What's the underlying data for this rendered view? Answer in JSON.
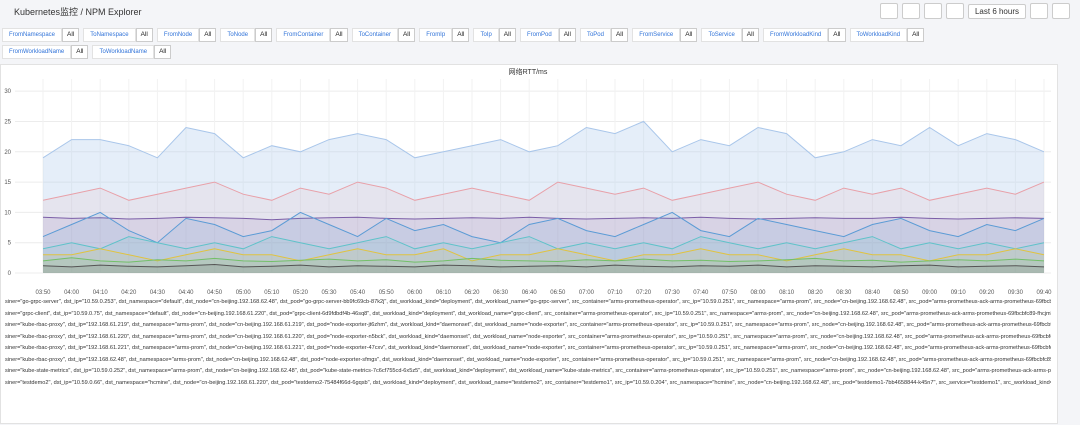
{
  "header": {
    "title": "Kubernetes监控 / NPM Explorer",
    "time_range": "Last 6 hours"
  },
  "filters": [
    {
      "label": "FromNamespace",
      "value": "All"
    },
    {
      "label": "ToNamespace",
      "value": "All"
    },
    {
      "label": "FromNode",
      "value": "All"
    },
    {
      "label": "ToNode",
      "value": "All"
    },
    {
      "label": "FromContainer",
      "value": "All"
    },
    {
      "label": "ToContainer",
      "value": "All"
    },
    {
      "label": "FromIp",
      "value": "All"
    },
    {
      "label": "ToIp",
      "value": "All"
    },
    {
      "label": "FromPod",
      "value": "All"
    },
    {
      "label": "ToPod",
      "value": "All"
    },
    {
      "label": "FromService",
      "value": "All"
    },
    {
      "label": "ToService",
      "value": "All"
    },
    {
      "label": "FromWorkloadKind",
      "value": "All"
    },
    {
      "label": "ToWorkloadKind",
      "value": "All"
    },
    {
      "label": "FromWorkloadName",
      "value": "All"
    },
    {
      "label": "ToWorkloadName",
      "value": "All"
    }
  ],
  "chart_data": {
    "type": "line",
    "title": "网络RTT/ms",
    "grid": true,
    "ylim": [
      0,
      32
    ],
    "yticks": [
      0,
      5,
      10,
      15,
      20,
      25,
      30
    ],
    "x": [
      "03:50",
      "04:00",
      "04:10",
      "04:20",
      "04:30",
      "04:40",
      "04:50",
      "05:00",
      "05:10",
      "05:20",
      "05:30",
      "05:40",
      "05:50",
      "06:00",
      "06:10",
      "06:20",
      "06:30",
      "06:40",
      "06:50",
      "07:00",
      "07:10",
      "07:20",
      "07:30",
      "07:40",
      "07:50",
      "08:00",
      "08:10",
      "08:20",
      "08:30",
      "08:40",
      "08:50",
      "09:00",
      "09:10",
      "09:20",
      "09:30",
      "09:40"
    ],
    "series": [
      {
        "name": "siner=\"go-grpc-server\", dst_ip=\"10.59.0.253\", dst_namespace=\"default\", dst_node=\"cn-beijing.192.168.62.48\", dst_pod=\"go-grpc-server-bb9fc69cb-87k2j\", dst_workload_kind=\"deployment\", dst_workload_name=\"go-grpc-server\", src_container=\"arms-prometheus-operator\", src_ip=\"10.59.0.251\", src_namespace=\"arms-prom\", src_node=\"cn-beijing.192.168.62.48\", src_pod=\"arms-prometheus-ack-arms-prometheus-69fbcbfc89",
        "color": "#a9c6ea",
        "values": [
          19,
          22,
          22,
          21,
          19,
          24,
          23,
          19,
          21,
          20,
          22,
          23,
          22,
          19,
          20,
          21,
          22,
          20,
          21,
          24,
          23,
          25,
          20,
          22,
          21,
          24,
          23,
          19,
          20,
          22,
          21,
          24,
          21,
          23,
          22,
          20
        ]
      },
      {
        "name": "siner=\"grpc-client\", dst_ip=\"10.59.0.75\", dst_namespace=\"default\", dst_node=\"cn-beijing.192.168.61.220\", dst_pod=\"grpc-client-6d9fdbdf4b-46sq8\", dst_workload_kind=\"deployment\", dst_workload_name=\"grpc-client\", src_container=\"arms-prometheus-operator\", src_ip=\"10.59.0.251\", src_namespace=\"arms-prom\", src_node=\"cn-beijing.192.168.62.48\", src_pod=\"arms-prometheus-ack-arms-prometheus-69fbcbfc89-fhcjm\", src",
        "color": "#e8a0a8",
        "values": [
          12,
          13,
          14,
          12,
          13,
          14,
          15,
          13,
          12,
          14,
          13,
          15,
          14,
          12,
          13,
          14,
          13,
          12,
          15,
          14,
          13,
          14,
          12,
          13,
          14,
          15,
          13,
          12,
          14,
          13,
          14,
          12,
          13,
          14,
          13,
          15
        ]
      },
      {
        "name": "siner=\"kube-rbac-proxy\", dst_ip=\"192.168.61.219\", dst_namespace=\"arms-prom\", dst_node=\"cn-beijing.192.168.61.219\", dst_pod=\"node-exporter-jt6zhm\", dst_workload_kind=\"daemonset\", dst_workload_name=\"node-exporter\", src_container=\"arms-prometheus-operator\", src_ip=\"10.59.0.251\", src_namespace=\"arms-prom\", src_node=\"cn-beijing.192.168.62.48\", src_pod=\"arms-prometheus-ack-arms-prometheus-69fbcbfc89-",
        "color": "#7b5ea7",
        "values": [
          9.2,
          9,
          9.1,
          8.9,
          9,
          9.2,
          9.1,
          9,
          8.8,
          9,
          9.1,
          9.2,
          9,
          8.9,
          9,
          9.1,
          9,
          9.2,
          9,
          8.9,
          9,
          9.1,
          9,
          9.2,
          9,
          8.9,
          9,
          9.1,
          9,
          9,
          9.2,
          9,
          8.9,
          9,
          9.1,
          9
        ]
      },
      {
        "name": "siner=\"kube-rbac-proxy\", dst_ip=\"192.168.61.220\", dst_namespace=\"arms-prom\", dst_node=\"cn-beijing.192.168.61.220\", dst_pod=\"node-exporter-n5bck\", dst_workload_kind=\"daemonset\", dst_workload_name=\"node-exporter\", src_container=\"arms-prometheus-operator\", src_ip=\"10.59.0.251\", src_namespace=\"arms-prom\", src_node=\"cn-beijing.192.168.62.48\", src_pod=\"arms-prometheus-ack-arms-prometheus-69fbcbfc8",
        "color": "#5b9bd5",
        "values": [
          6,
          8,
          10,
          7,
          5,
          9,
          8,
          6,
          7,
          10,
          8,
          6,
          9,
          7,
          8,
          6,
          5,
          8,
          9,
          7,
          6,
          8,
          10,
          7,
          6,
          9,
          8,
          7,
          6,
          8,
          9,
          7,
          6,
          8,
          7,
          9
        ]
      },
      {
        "name": "siner=\"kube-rbac-proxy\", dst_ip=\"192.168.61.221\", dst_namespace=\"arms-prom\", dst_node=\"cn-beijing.192.168.61.221\", dst_pod=\"node-exporter-47cxv\", dst_workload_kind=\"daemonset\", dst_workload_name=\"node-exporter\", src_container=\"arms-prometheus-operator\", src_ip=\"10.59.0.251\", src_namespace=\"arms-prom\", src_node=\"cn-beijing.192.168.62.48\", src_pod=\"arms-prometheus-ack-arms-prometheus-69fbcbfc89-",
        "color": "#5fc2c9",
        "values": [
          4,
          5,
          4,
          6,
          5,
          4,
          5,
          4,
          6,
          5,
          4,
          5,
          6,
          4,
          5,
          4,
          5,
          6,
          4,
          5,
          4,
          5,
          4,
          6,
          5,
          4,
          5,
          4,
          5,
          6,
          4,
          5,
          4,
          5,
          4,
          5
        ]
      },
      {
        "name": "siner=\"kube-rbac-proxy\", dst_ip=\"192.168.62.48\", dst_namespace=\"arms-prom\", dst_node=\"cn-beijing.192.168.62.48\", dst_pod=\"node-exporter-sfmgs\", dst_workload_kind=\"daemonset\", dst_workload_name=\"node-exporter\", src_container=\"arms-prometheus-operator\", src_ip=\"10.59.0.251\", src_namespace=\"arms-prom\", src_node=\"cn-beijing.192.168.62.48\", src_pod=\"arms-prometheus-ack-arms-prometheus-69fbcbfc89-ftv",
        "color": "#e0c341",
        "values": [
          3,
          3,
          4,
          3,
          2,
          3,
          4,
          3,
          3,
          2,
          3,
          4,
          3,
          3,
          4,
          2,
          3,
          3,
          4,
          3,
          2,
          3,
          3,
          4,
          3,
          3,
          2,
          3,
          4,
          3,
          3,
          2,
          3,
          3,
          4,
          3
        ]
      },
      {
        "name": "siner=\"kube-state-metrics\", dst_ip=\"10.59.0.252\", dst_namespace=\"arms-prom\", dst_node=\"cn-beijing.192.168.62.48\", dst_pod=\"kube-state-metrics-7c6cf755cd-6x5z5\", dst_workload_kind=\"deployment\", dst_workload_name=\"kube-state-metrics\", src_container=\"arms-prometheus-operator\", src_ip=\"10.59.0.251\", src_namespace=\"arms-prom\", src_node=\"cn-beijing.192.168.62.48\", src_pod=\"arms-prometheus-ack-arms-prome",
        "color": "#73bf69",
        "values": [
          2,
          2.5,
          2,
          1.8,
          2.2,
          2,
          2.4,
          2,
          1.9,
          2.1,
          2.3,
          2,
          2.2,
          1.8,
          2,
          2.4,
          2.1,
          2,
          1.9,
          2.2,
          2,
          2.3,
          2,
          2.1,
          1.9,
          2,
          2.2,
          2.4,
          2,
          2.1,
          1.8,
          2,
          2.2,
          2,
          2.3,
          2
        ]
      },
      {
        "name": "siner=\"testdemo2\", dst_ip=\"10.59.0.66\", dst_namespace=\"hcmine\", dst_node=\"cn-beijing.192.168.61.220\", dst_pod=\"testdemo2-75484f66d-6gqsb\", dst_workload_kind=\"deployment\", dst_workload_name=\"testdemo2\", src_container=\"testdemo1\", src_ip=\"10.59.0.204\", src_namespace=\"hcmine\", src_node=\"cn-beijing.192.168.62.48\", src_pod=\"testdemo1-7bb4658844-k45n7\", src_service=\"testdemo1\", src_workload_kind=\"de",
        "color": "#555555",
        "values": [
          1.2,
          1,
          1.3,
          1.1,
          1,
          1.2,
          1.4,
          1,
          1.1,
          1.3,
          1,
          1.2,
          1.1,
          1,
          1.3,
          1.2,
          1,
          1.1,
          1.2,
          1,
          1.3,
          1.1,
          1,
          1.2,
          1.1,
          1.3,
          1,
          1.2,
          1.1,
          1,
          1.2,
          1.3,
          1,
          1.1,
          1.2,
          1
        ]
      }
    ]
  }
}
